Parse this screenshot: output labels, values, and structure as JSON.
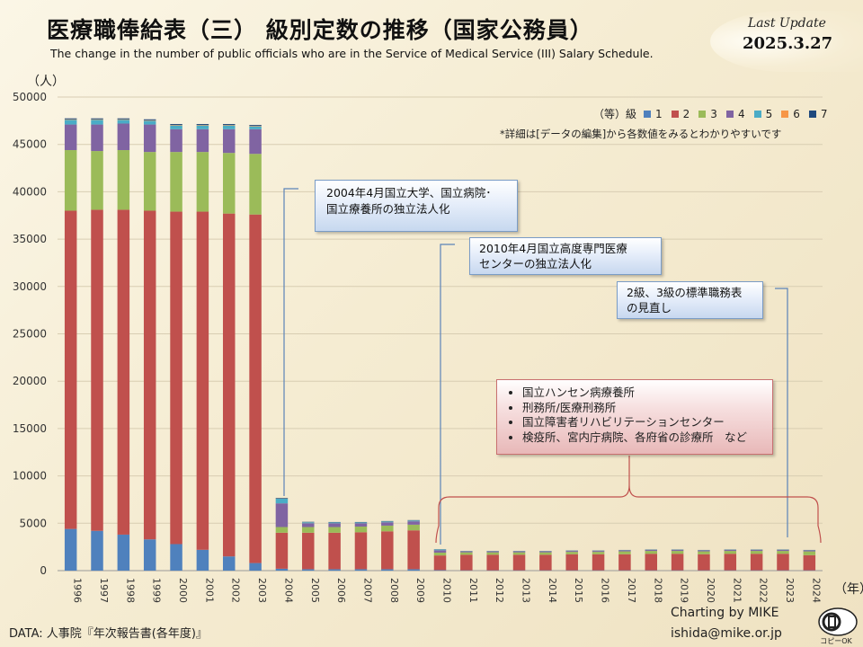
{
  "header": {
    "title": "医療職俸給表（三） 級別定数の推移（国家公務員）",
    "subtitle": "The change in the number of public officials who are in the Service of Medical Service (III) Salary Schedule.",
    "update_label": "Last Update",
    "update_date": "2025.3.27"
  },
  "note": "*詳細は[データの編集]から各数値をみるとわかりやすいです",
  "callouts": {
    "c2004": [
      "2004年4月国立大学、国立病院･",
      "国立療養所の独立法人化"
    ],
    "c2010": [
      "2010年4月国立高度専門医療",
      "センターの独立法人化"
    ],
    "c2023": [
      "2級、3級の標準職務表",
      "の見直し"
    ],
    "c_list": [
      "国立ハンセン病療養所",
      "刑務所/医療刑務所",
      "国立障害者リハビリテーションセンター",
      "検疫所、宮内庁病院、各府省の診療所　など"
    ]
  },
  "footer": {
    "source": "DATA: 人事院『年次報告書(各年度)』",
    "credit1": "Charting by MIKE",
    "credit2": "ishida@mike.or.jp",
    "logo_text": "コピーOK"
  },
  "chart_data": {
    "type": "bar",
    "stacked": true,
    "title": "医療職俸給表（三） 級別定数の推移（国家公務員）",
    "y_unit": "（人）",
    "x_unit": "（年）",
    "legend_title": "（等）級",
    "legend_position": "top-right",
    "grid": true,
    "ylim": [
      0,
      50000
    ],
    "yticks": [
      0,
      5000,
      10000,
      15000,
      20000,
      25000,
      30000,
      35000,
      40000,
      45000,
      50000
    ],
    "categories": [
      "1996",
      "1997",
      "1998",
      "1999",
      "2000",
      "2001",
      "2002",
      "2003",
      "2004",
      "2005",
      "2006",
      "2007",
      "2008",
      "2009",
      "2010",
      "2011",
      "2012",
      "2013",
      "2014",
      "2015",
      "2016",
      "2017",
      "2018",
      "2019",
      "2020",
      "2021",
      "2022",
      "2023",
      "2024"
    ],
    "series": [
      {
        "name": "1",
        "color": "#4f81bd",
        "values": [
          4400,
          4200,
          3800,
          3300,
          2800,
          2200,
          1500,
          800,
          200,
          150,
          150,
          150,
          150,
          150,
          50,
          30,
          30,
          30,
          30,
          30,
          30,
          30,
          30,
          30,
          30,
          30,
          30,
          30,
          30
        ]
      },
      {
        "name": "2",
        "color": "#c0504d",
        "values": [
          33600,
          33900,
          34300,
          34700,
          35100,
          35700,
          36200,
          36800,
          3800,
          3850,
          3850,
          3900,
          4000,
          4100,
          1550,
          1650,
          1650,
          1650,
          1650,
          1700,
          1700,
          1700,
          1750,
          1750,
          1700,
          1750,
          1750,
          1750,
          1600
        ]
      },
      {
        "name": "3",
        "color": "#9bbb59",
        "values": [
          6400,
          6200,
          6300,
          6200,
          6300,
          6300,
          6400,
          6400,
          600,
          600,
          600,
          600,
          600,
          600,
          300,
          250,
          250,
          250,
          250,
          250,
          250,
          300,
          300,
          300,
          300,
          300,
          300,
          300,
          400
        ]
      },
      {
        "name": "4",
        "color": "#8064a2",
        "values": [
          2700,
          2800,
          2800,
          2900,
          2400,
          2400,
          2500,
          2600,
          2500,
          400,
          400,
          350,
          350,
          350,
          250,
          100,
          100,
          100,
          100,
          100,
          100,
          100,
          100,
          100,
          100,
          100,
          100,
          100,
          100
        ]
      },
      {
        "name": "5",
        "color": "#4bacc6",
        "values": [
          500,
          500,
          400,
          400,
          400,
          400,
          400,
          300,
          500,
          100,
          80,
          80,
          80,
          80,
          80,
          30,
          30,
          30,
          30,
          30,
          30,
          30,
          30,
          30,
          30,
          30,
          30,
          30,
          30
        ]
      },
      {
        "name": "6",
        "color": "#f79646",
        "values": [
          50,
          50,
          50,
          50,
          50,
          50,
          50,
          50,
          20,
          10,
          10,
          10,
          10,
          10,
          5,
          5,
          5,
          5,
          5,
          5,
          5,
          5,
          5,
          5,
          5,
          5,
          5,
          5,
          5
        ]
      },
      {
        "name": "7",
        "color": "#1f497d",
        "values": [
          100,
          100,
          100,
          100,
          100,
          100,
          100,
          100,
          60,
          40,
          40,
          40,
          40,
          40,
          20,
          20,
          20,
          20,
          20,
          20,
          20,
          20,
          20,
          20,
          20,
          20,
          20,
          20,
          20
        ]
      }
    ]
  }
}
